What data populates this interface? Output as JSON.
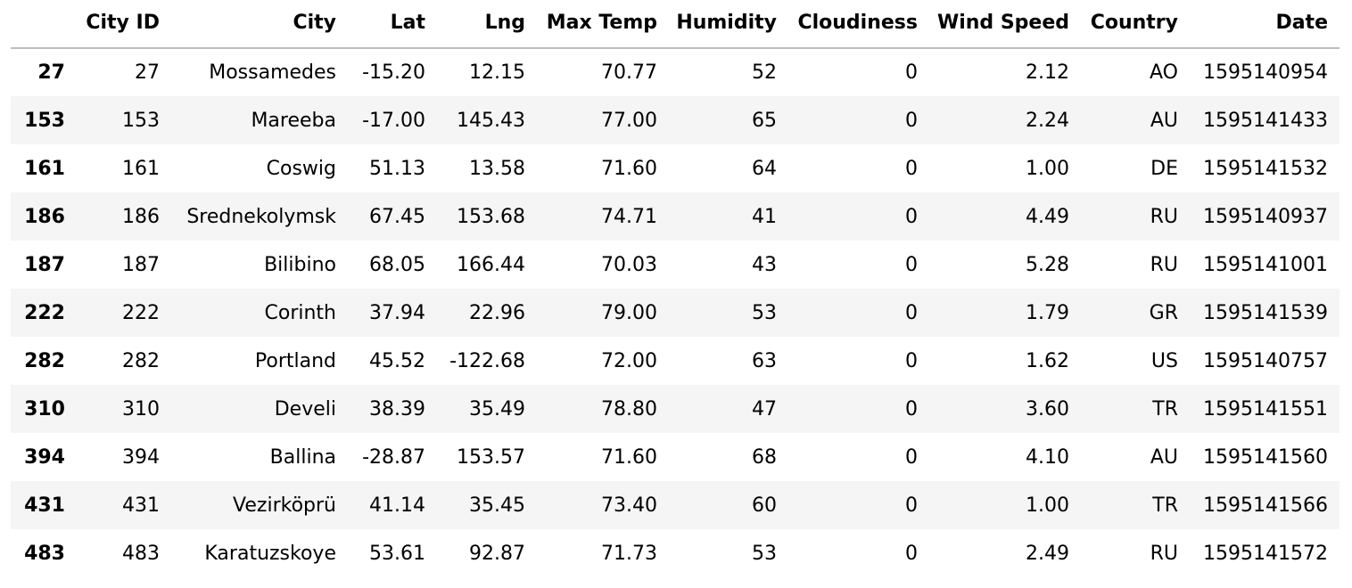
{
  "table": {
    "columns": [
      "",
      "City ID",
      "City",
      "Lat",
      "Lng",
      "Max Temp",
      "Humidity",
      "Cloudiness",
      "Wind Speed",
      "Country",
      "Date"
    ],
    "rows": [
      [
        "27",
        "27",
        "Mossamedes",
        "-15.20",
        "12.15",
        "70.77",
        "52",
        "0",
        "2.12",
        "AO",
        "1595140954"
      ],
      [
        "153",
        "153",
        "Mareeba",
        "-17.00",
        "145.43",
        "77.00",
        "65",
        "0",
        "2.24",
        "AU",
        "1595141433"
      ],
      [
        "161",
        "161",
        "Coswig",
        "51.13",
        "13.58",
        "71.60",
        "64",
        "0",
        "1.00",
        "DE",
        "1595141532"
      ],
      [
        "186",
        "186",
        "Srednekolymsk",
        "67.45",
        "153.68",
        "74.71",
        "41",
        "0",
        "4.49",
        "RU",
        "1595140937"
      ],
      [
        "187",
        "187",
        "Bilibino",
        "68.05",
        "166.44",
        "70.03",
        "43",
        "0",
        "5.28",
        "RU",
        "1595141001"
      ],
      [
        "222",
        "222",
        "Corinth",
        "37.94",
        "22.96",
        "79.00",
        "53",
        "0",
        "1.79",
        "GR",
        "1595141539"
      ],
      [
        "282",
        "282",
        "Portland",
        "45.52",
        "-122.68",
        "72.00",
        "63",
        "0",
        "1.62",
        "US",
        "1595140757"
      ],
      [
        "310",
        "310",
        "Develi",
        "38.39",
        "35.49",
        "78.80",
        "47",
        "0",
        "3.60",
        "TR",
        "1595141551"
      ],
      [
        "394",
        "394",
        "Ballina",
        "-28.87",
        "153.57",
        "71.60",
        "68",
        "0",
        "4.10",
        "AU",
        "1595141560"
      ],
      [
        "431",
        "431",
        "Vezirköprü",
        "41.14",
        "35.45",
        "73.40",
        "60",
        "0",
        "1.00",
        "TR",
        "1595141566"
      ],
      [
        "483",
        "483",
        "Karatuzskoye",
        "53.61",
        "92.87",
        "71.73",
        "53",
        "0",
        "2.49",
        "RU",
        "1595141572"
      ]
    ]
  }
}
